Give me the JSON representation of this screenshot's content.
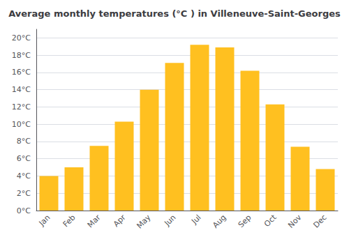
{
  "chart_data": {
    "type": "bar",
    "title": "Average monthly temperatures (°C ) in Villeneuve-Saint-Georges",
    "categories": [
      "Jan",
      "Feb",
      "Mar",
      "Apr",
      "May",
      "Jun",
      "Jul",
      "Aug",
      "Sep",
      "Oct",
      "Nov",
      "Dec"
    ],
    "values": [
      4.0,
      5.0,
      7.5,
      10.3,
      14.0,
      17.1,
      19.2,
      18.9,
      16.2,
      12.3,
      7.4,
      4.8
    ],
    "color": "#FFC020",
    "ylim": [
      0,
      21
    ],
    "yticks": [
      {
        "value": 0,
        "label": "0°C"
      },
      {
        "value": 2,
        "label": "2°C"
      },
      {
        "value": 4,
        "label": "4°C"
      },
      {
        "value": 6,
        "label": "6°C"
      },
      {
        "value": 8,
        "label": "8°C"
      },
      {
        "value": 10,
        "label": "10°C"
      },
      {
        "value": 12,
        "label": "12°C"
      },
      {
        "value": 14,
        "label": "14°C"
      },
      {
        "value": 16,
        "label": "16°C"
      },
      {
        "value": 18,
        "label": "18°C"
      },
      {
        "value": 20,
        "label": "20°C"
      }
    ],
    "grid": true
  }
}
